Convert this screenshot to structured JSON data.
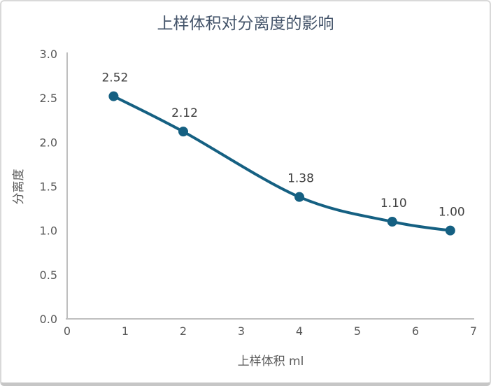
{
  "chart_data": {
    "type": "line",
    "title": "上样体积对分离度的影响",
    "xlabel": "上样体积 ml",
    "ylabel": "分离度",
    "x": [
      0.8,
      2,
      4,
      5.6,
      6.6
    ],
    "y": [
      2.52,
      2.12,
      1.38,
      1.1,
      1.0
    ],
    "point_labels": [
      "2.52",
      "2.12",
      "1.38",
      "1.10",
      "1.00"
    ],
    "xlim": [
      0,
      7
    ],
    "ylim": [
      0,
      3
    ],
    "x_ticks": [
      "0",
      "1",
      "2",
      "3",
      "4",
      "5",
      "6",
      "7"
    ],
    "y_ticks": [
      "0.0",
      "0.5",
      "1.0",
      "1.5",
      "2.0",
      "2.5",
      "3.0"
    ],
    "grid": false,
    "legend": "none",
    "smooth": true,
    "marker_radius": 7,
    "line_width": 4,
    "colors": {
      "series": "#156082",
      "axis_line": "#bfbfbf",
      "tick_text": "#595959",
      "point_label_text": "#404040",
      "title_text": "#44546a",
      "background": "#ffffff",
      "frame_border": "#d9d9d9"
    }
  }
}
